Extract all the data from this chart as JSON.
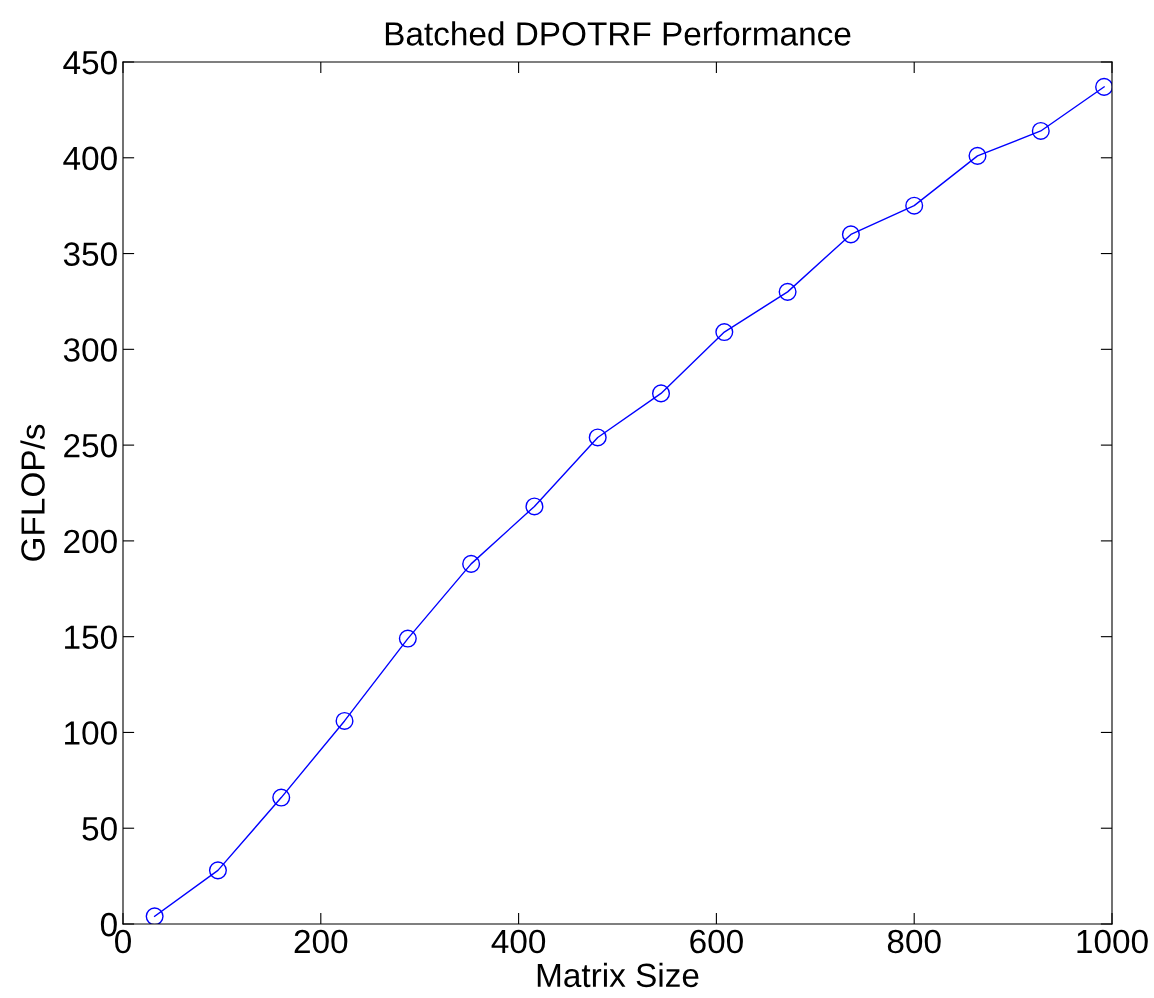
{
  "chart_data": {
    "type": "line",
    "title": "Batched DPOTRF Performance",
    "xlabel": "Matrix Size",
    "ylabel": "GFLOP/s",
    "series": [
      {
        "color": "#0000ff",
        "x": [
          32,
          96,
          160,
          224,
          288,
          352,
          416,
          480,
          544,
          608,
          672,
          736,
          800,
          864,
          928,
          992
        ],
        "values": [
          4,
          28,
          66,
          106,
          149,
          188,
          218,
          254,
          277,
          309,
          330,
          360,
          375,
          401,
          414,
          437
        ]
      }
    ],
    "xlim": [
      0,
      1000
    ],
    "xticks": [
      0,
      200,
      400,
      600,
      800,
      1000
    ],
    "ylim": [
      0,
      450
    ],
    "yticks": [
      0,
      50,
      100,
      150,
      200,
      250,
      300,
      350,
      400,
      450
    ],
    "marker": "circle",
    "line_style": "solid",
    "grid": false
  }
}
